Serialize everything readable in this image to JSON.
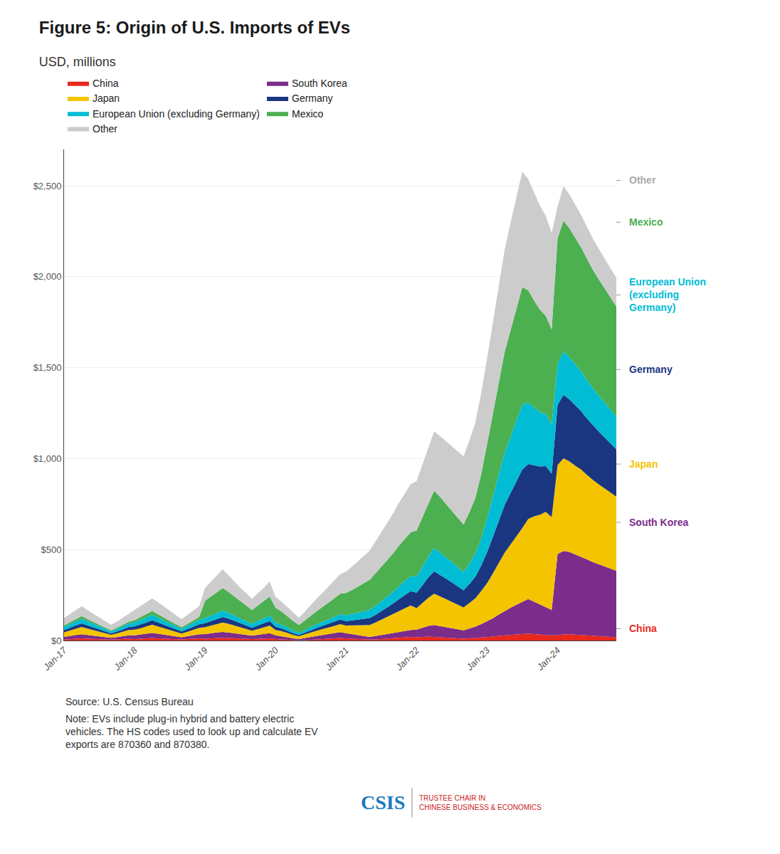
{
  "chart_data": {
    "type": "area",
    "stacked": true,
    "title": "Figure 5: Origin of U.S. Imports of EVs",
    "subtitle": "USD, millions",
    "grid": true,
    "legend": "top",
    "ylim": [
      0,
      2700
    ],
    "yticks": [
      {
        "value": 0,
        "label": "$0"
      },
      {
        "value": 500,
        "label": "$500"
      },
      {
        "value": 1000,
        "label": "$1,000"
      },
      {
        "value": 1500,
        "label": "$1,500"
      },
      {
        "value": 2000,
        "label": "$2,000"
      },
      {
        "value": 2500,
        "label": "$2,500"
      }
    ],
    "categories": [
      "Jan-17",
      null,
      null,
      null,
      null,
      null,
      null,
      null,
      null,
      null,
      null,
      null,
      "Jan-18",
      null,
      null,
      null,
      null,
      null,
      null,
      null,
      null,
      null,
      null,
      null,
      "Jan-19",
      null,
      null,
      null,
      null,
      null,
      null,
      null,
      null,
      null,
      null,
      null,
      "Jan-20",
      null,
      null,
      null,
      null,
      null,
      null,
      null,
      null,
      null,
      null,
      null,
      "Jan-21",
      null,
      null,
      null,
      null,
      null,
      null,
      null,
      null,
      null,
      null,
      null,
      "Jan-22",
      null,
      null,
      null,
      null,
      null,
      null,
      null,
      null,
      null,
      null,
      null,
      "Jan-23",
      null,
      null,
      null,
      null,
      null,
      null,
      null,
      null,
      null,
      null,
      null,
      "Jan-24",
      null,
      null,
      null,
      null,
      null,
      null,
      null,
      null,
      null,
      null
    ],
    "series": [
      {
        "name": "China",
        "color": "#e8291c",
        "values": [
          5,
          8,
          10,
          12,
          10,
          8,
          7,
          6,
          5,
          7,
          8,
          10,
          8,
          10,
          12,
          14,
          12,
          10,
          8,
          7,
          6,
          8,
          10,
          12,
          10,
          12,
          14,
          15,
          14,
          12,
          10,
          9,
          8,
          9,
          10,
          12,
          8,
          6,
          4,
          2,
          1,
          2,
          4,
          6,
          8,
          10,
          12,
          14,
          12,
          10,
          8,
          6,
          5,
          6,
          8,
          10,
          12,
          15,
          18,
          20,
          18,
          20,
          22,
          20,
          18,
          16,
          14,
          12,
          10,
          12,
          14,
          18,
          20,
          22,
          25,
          28,
          30,
          32,
          35,
          38,
          35,
          32,
          30,
          28,
          30,
          32,
          35,
          32,
          30,
          28,
          26,
          24,
          22,
          20,
          18
        ]
      },
      {
        "name": "South Korea",
        "color": "#7b2d8b",
        "values": [
          15,
          18,
          20,
          22,
          20,
          18,
          15,
          12,
          10,
          12,
          15,
          18,
          20,
          22,
          25,
          28,
          25,
          22,
          18,
          15,
          12,
          15,
          18,
          22,
          25,
          28,
          30,
          32,
          30,
          28,
          25,
          22,
          18,
          22,
          25,
          28,
          20,
          18,
          14,
          10,
          8,
          12,
          16,
          20,
          22,
          25,
          28,
          32,
          28,
          25,
          22,
          18,
          15,
          18,
          22,
          25,
          28,
          32,
          35,
          38,
          42,
          50,
          58,
          65,
          62,
          58,
          54,
          50,
          46,
          54,
          62,
          72,
          85,
          100,
          118,
          135,
          150,
          165,
          178,
          190,
          178,
          165,
          152,
          140,
          445,
          460,
          452,
          442,
          432,
          418,
          405,
          395,
          385,
          375,
          365
        ]
      },
      {
        "name": "Japan",
        "color": "#f5c400",
        "values": [
          25,
          30,
          35,
          40,
          35,
          30,
          25,
          20,
          16,
          20,
          25,
          30,
          32,
          35,
          40,
          45,
          40,
          35,
          30,
          25,
          20,
          25,
          30,
          35,
          38,
          42,
          48,
          52,
          48,
          42,
          38,
          32,
          28,
          32,
          38,
          42,
          30,
          28,
          24,
          18,
          14,
          18,
          24,
          28,
          32,
          36,
          40,
          44,
          42,
          48,
          54,
          60,
          65,
          75,
          85,
          95,
          105,
          115,
          125,
          135,
          118,
          135,
          155,
          172,
          164,
          154,
          144,
          135,
          126,
          140,
          156,
          182,
          210,
          248,
          285,
          320,
          348,
          375,
          405,
          440,
          470,
          495,
          525,
          510,
          490,
          510,
          498,
          488,
          478,
          465,
          452,
          440,
          430,
          420,
          408
        ]
      },
      {
        "name": "Germany",
        "color": "#1a3680",
        "values": [
          12,
          15,
          18,
          20,
          18,
          15,
          12,
          10,
          8,
          10,
          12,
          15,
          18,
          20,
          22,
          25,
          22,
          20,
          18,
          15,
          12,
          15,
          18,
          20,
          22,
          25,
          28,
          30,
          28,
          25,
          22,
          20,
          16,
          20,
          22,
          25,
          18,
          15,
          12,
          10,
          8,
          10,
          12,
          15,
          18,
          20,
          22,
          25,
          25,
          28,
          32,
          35,
          38,
          42,
          48,
          52,
          58,
          65,
          72,
          78,
          85,
          98,
          112,
          124,
          118,
          112,
          108,
          100,
          94,
          105,
          118,
          140,
          170,
          200,
          232,
          262,
          282,
          302,
          322,
          302,
          280,
          265,
          252,
          240,
          330,
          348,
          342,
          332,
          322,
          310,
          300,
          290,
          280,
          270,
          260
        ]
      },
      {
        "name": "European Union (excluding Germany)",
        "color": "#00bcd4",
        "values": [
          18,
          20,
          22,
          25,
          22,
          20,
          18,
          15,
          12,
          15,
          18,
          20,
          22,
          25,
          28,
          30,
          28,
          25,
          22,
          18,
          15,
          18,
          22,
          25,
          28,
          30,
          32,
          35,
          32,
          30,
          28,
          25,
          22,
          25,
          28,
          30,
          22,
          20,
          18,
          15,
          12,
          15,
          18,
          20,
          22,
          25,
          28,
          30,
          32,
          35,
          38,
          42,
          45,
          50,
          55,
          60,
          65,
          72,
          78,
          82,
          90,
          102,
          115,
          128,
          122,
          116,
          112,
          106,
          100,
          112,
          128,
          148,
          185,
          220,
          255,
          288,
          310,
          335,
          358,
          338,
          318,
          300,
          285,
          272,
          225,
          240,
          232,
          226,
          218,
          210,
          204,
          198,
          192,
          186,
          180
        ]
      },
      {
        "name": "Mexico",
        "color": "#4caf50",
        "values": [
          8,
          10,
          12,
          15,
          12,
          10,
          8,
          6,
          5,
          6,
          8,
          10,
          12,
          15,
          18,
          20,
          18,
          15,
          12,
          10,
          8,
          10,
          12,
          15,
          95,
          105,
          115,
          125,
          115,
          105,
          95,
          85,
          75,
          85,
          95,
          105,
          82,
          72,
          62,
          52,
          42,
          52,
          62,
          72,
          82,
          92,
          102,
          112,
          122,
          132,
          142,
          155,
          165,
          178,
          188,
          198,
          210,
          222,
          232,
          242,
          252,
          272,
          292,
          315,
          305,
          294,
          282,
          272,
          262,
          282,
          305,
          355,
          408,
          458,
          505,
          555,
          585,
          615,
          645,
          618,
          588,
          562,
          540,
          520,
          690,
          718,
          708,
          695,
          682,
          668,
          652,
          640,
          628,
          618,
          605
        ]
      },
      {
        "name": "Other",
        "color": "#cccccc",
        "values": [
          40,
          45,
          50,
          55,
          50,
          45,
          40,
          35,
          30,
          35,
          40,
          45,
          55,
          60,
          65,
          70,
          65,
          60,
          55,
          50,
          44,
          50,
          55,
          60,
          72,
          82,
          92,
          102,
          92,
          82,
          72,
          68,
          62,
          68,
          72,
          82,
          60,
          55,
          50,
          46,
          40,
          50,
          60,
          70,
          78,
          88,
          98,
          108,
          118,
          128,
          138,
          150,
          160,
          175,
          190,
          205,
          220,
          235,
          250,
          265,
          272,
          292,
          305,
          325,
          335,
          345,
          355,
          365,
          375,
          395,
          415,
          445,
          472,
          502,
          532,
          562,
          592,
          612,
          635,
          612,
          592,
          572,
          550,
          530,
          175,
          190,
          186,
          182,
          178,
          175,
          172,
          168,
          165,
          162,
          158
        ]
      }
    ],
    "annotations": [
      {
        "text": "Other",
        "color": "#aaaaaa",
        "y": 2530
      },
      {
        "text": "Mexico",
        "color": "#4caf50",
        "y": 2300
      },
      {
        "text": "European Union\n(excluding\nGermany)",
        "color": "#00bcd4",
        "y": 1900
      },
      {
        "text": "Germany",
        "color": "#1a3680",
        "y": 1490
      },
      {
        "text": "Japan",
        "color": "#f5c400",
        "y": 970
      },
      {
        "text": "South Korea",
        "color": "#7b2d8b",
        "y": 650
      },
      {
        "text": "China",
        "color": "#e8291c",
        "y": 65
      }
    ],
    "source": "Source: U.S. Census Bureau",
    "note": [
      "Note: EVs include plug-in hybrid and battery electric",
      "vehicles. The HS codes used to look up and calculate EV",
      "exports are 870360 and 870380."
    ],
    "logo": [
      "CSIS",
      "TRUSTEE CHAIR IN",
      "CHINESE BUSINESS & ECONOMICS"
    ]
  }
}
